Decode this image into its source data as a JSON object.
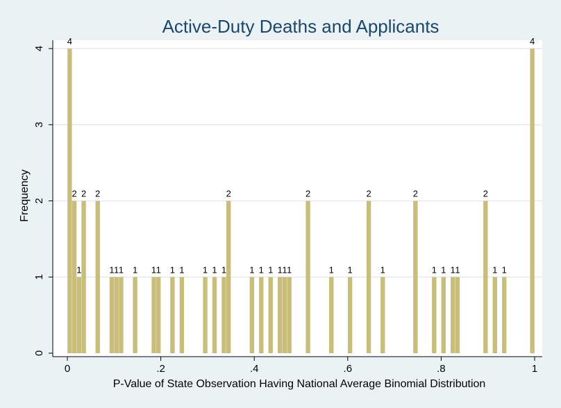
{
  "chart_data": {
    "type": "bar",
    "title": "Active-Duty Deaths and Applicants",
    "xlabel": "P-Value of State Observation Having National Average Binomial Distribution",
    "ylabel": "Frequency",
    "xlim": [
      0,
      1
    ],
    "ylim": [
      0,
      4
    ],
    "xticks": [
      {
        "value": 0,
        "label": "0"
      },
      {
        "value": 0.2,
        "label": ".2"
      },
      {
        "value": 0.4,
        "label": ".4"
      },
      {
        "value": 0.6,
        "label": ".6"
      },
      {
        "value": 0.8,
        "label": ".8"
      },
      {
        "value": 1,
        "label": "1"
      }
    ],
    "yticks": [
      {
        "value": 0,
        "label": "0"
      },
      {
        "value": 1,
        "label": "1"
      },
      {
        "value": 2,
        "label": "2"
      },
      {
        "value": 3,
        "label": "3"
      },
      {
        "value": 4,
        "label": "4"
      }
    ],
    "grid": true,
    "bar_color": "#c8be7a",
    "bars": [
      {
        "x": 0.005,
        "value": 4
      },
      {
        "x": 0.015,
        "value": 2
      },
      {
        "x": 0.025,
        "value": 1
      },
      {
        "x": 0.035,
        "value": 2
      },
      {
        "x": 0.065,
        "value": 2
      },
      {
        "x": 0.095,
        "value": 1
      },
      {
        "x": 0.105,
        "value": 1
      },
      {
        "x": 0.115,
        "value": 1
      },
      {
        "x": 0.145,
        "value": 1
      },
      {
        "x": 0.185,
        "value": 1
      },
      {
        "x": 0.195,
        "value": 1
      },
      {
        "x": 0.225,
        "value": 1
      },
      {
        "x": 0.245,
        "value": 1
      },
      {
        "x": 0.295,
        "value": 1
      },
      {
        "x": 0.315,
        "value": 1
      },
      {
        "x": 0.335,
        "value": 1
      },
      {
        "x": 0.345,
        "value": 2
      },
      {
        "x": 0.395,
        "value": 1
      },
      {
        "x": 0.415,
        "value": 1
      },
      {
        "x": 0.435,
        "value": 1
      },
      {
        "x": 0.455,
        "value": 1
      },
      {
        "x": 0.465,
        "value": 1
      },
      {
        "x": 0.475,
        "value": 1
      },
      {
        "x": 0.515,
        "value": 2
      },
      {
        "x": 0.565,
        "value": 1
      },
      {
        "x": 0.605,
        "value": 1
      },
      {
        "x": 0.645,
        "value": 2
      },
      {
        "x": 0.675,
        "value": 1
      },
      {
        "x": 0.745,
        "value": 2
      },
      {
        "x": 0.785,
        "value": 1
      },
      {
        "x": 0.805,
        "value": 1
      },
      {
        "x": 0.825,
        "value": 1
      },
      {
        "x": 0.835,
        "value": 1
      },
      {
        "x": 0.895,
        "value": 2
      },
      {
        "x": 0.915,
        "value": 1
      },
      {
        "x": 0.935,
        "value": 1
      },
      {
        "x": 0.995,
        "value": 4
      }
    ]
  }
}
